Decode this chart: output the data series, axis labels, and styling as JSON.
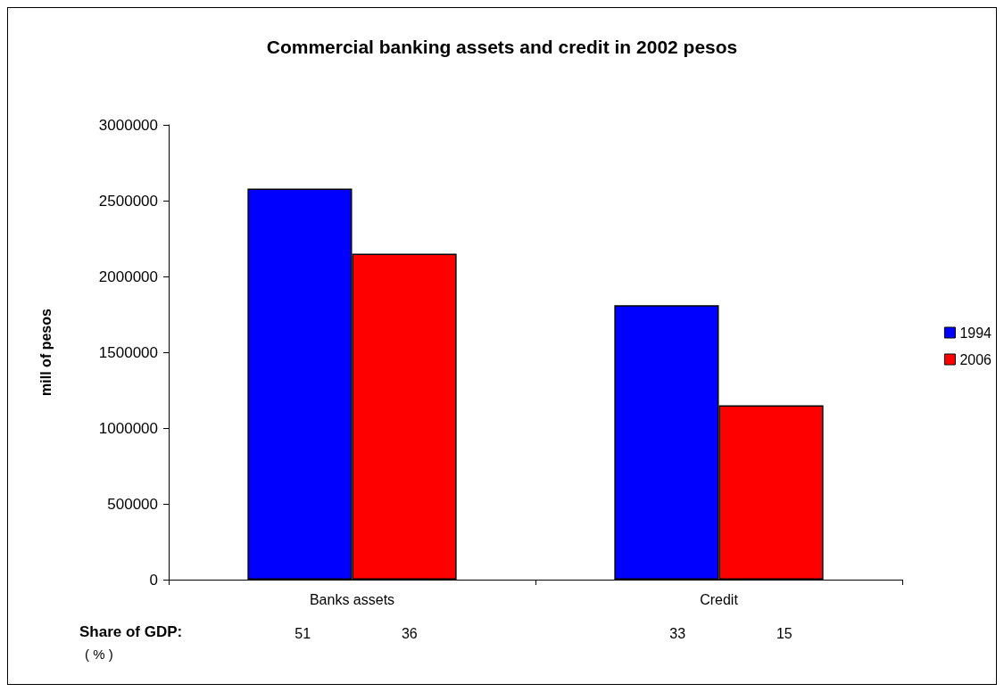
{
  "chart_data": {
    "type": "bar",
    "title": "Commercial banking assets and credit in 2002 pesos",
    "ylabel": "mill of pesos",
    "categories": [
      "Banks assets",
      "Credit"
    ],
    "series": [
      {
        "name": "1994",
        "color": "#0000ff",
        "values": [
          2580000,
          1810000
        ]
      },
      {
        "name": "2006",
        "color": "#ff0000",
        "values": [
          2150000,
          1150000
        ]
      }
    ],
    "ylim": [
      0,
      3000000
    ],
    "yticks": [
      0,
      500000,
      1000000,
      1500000,
      2000000,
      2500000,
      3000000
    ],
    "grid": false,
    "legend": "right",
    "annotations": [
      "Share of GDP:",
      "( % )",
      "51",
      "36",
      "33",
      "15"
    ]
  }
}
